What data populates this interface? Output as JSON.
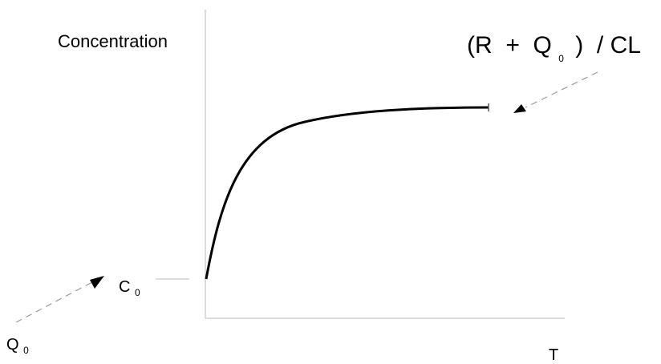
{
  "labels": {
    "y_axis": "Concentration",
    "x_axis": "T",
    "formula": {
      "open": "(R  +  Q",
      "subscript": "0",
      "close": ")  / CL"
    },
    "c0": {
      "base": "C",
      "subscript": "0"
    },
    "q0": {
      "base": "Q",
      "subscript": "0"
    }
  },
  "curve": {
    "description_type": "saturation",
    "start_label": "C0",
    "plateau_label": "(R + Q0) / CL"
  },
  "colors": {
    "curve": "#000000",
    "axes": "#d0d0d0",
    "dashed": "#9a9a9a",
    "arrowhead": "#000000",
    "text": "#000000"
  }
}
